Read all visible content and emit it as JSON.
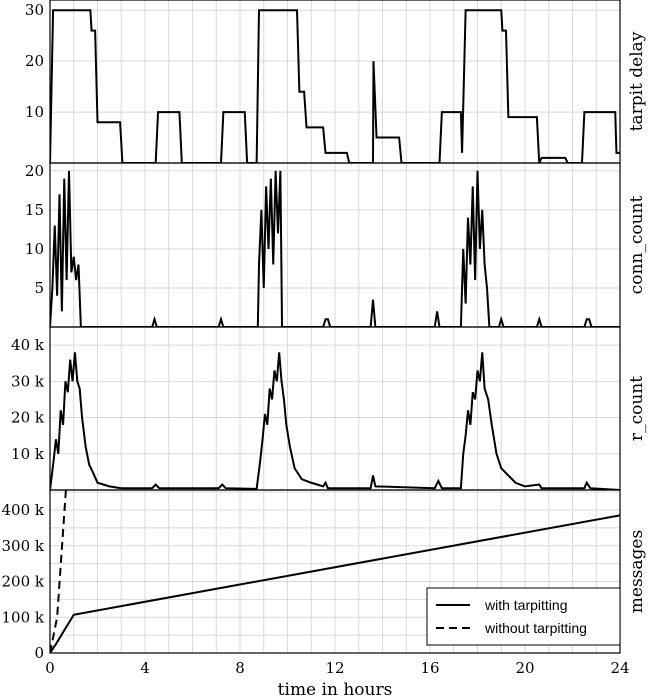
{
  "chart_data": [
    {
      "type": "line",
      "ylabel": "tarpit delay",
      "ylim": [
        0,
        32
      ],
      "yticks": [
        10,
        20,
        30
      ],
      "ytick_labels": [
        "10",
        "20",
        "30"
      ],
      "series": [
        {
          "name": "tarpit delay",
          "points": [
            [
              0,
              0
            ],
            [
              0.13,
              30
            ],
            [
              1.7,
              30
            ],
            [
              1.75,
              26
            ],
            [
              1.9,
              26
            ],
            [
              2.0,
              8
            ],
            [
              2.95,
              8
            ],
            [
              3.05,
              0
            ],
            [
              4.45,
              0
            ],
            [
              4.55,
              10
            ],
            [
              5.45,
              10
            ],
            [
              5.55,
              0
            ],
            [
              7.2,
              0
            ],
            [
              7.3,
              10
            ],
            [
              8.2,
              10
            ],
            [
              8.3,
              0
            ],
            [
              8.7,
              0
            ],
            [
              8.8,
              30
            ],
            [
              10.4,
              30
            ],
            [
              10.5,
              14
            ],
            [
              10.7,
              14
            ],
            [
              10.8,
              7
            ],
            [
              11.5,
              7
            ],
            [
              11.6,
              2
            ],
            [
              12.5,
              2
            ],
            [
              12.6,
              0
            ],
            [
              13.6,
              0
            ],
            [
              13.62,
              20
            ],
            [
              13.75,
              5
            ],
            [
              14.7,
              5
            ],
            [
              14.8,
              0
            ],
            [
              16.4,
              0
            ],
            [
              16.5,
              10
            ],
            [
              17.3,
              10
            ],
            [
              17.35,
              2
            ],
            [
              17.5,
              30
            ],
            [
              19.0,
              30
            ],
            [
              19.05,
              26
            ],
            [
              19.2,
              26
            ],
            [
              19.3,
              9
            ],
            [
              20.5,
              9
            ],
            [
              20.6,
              0
            ],
            [
              20.7,
              1
            ],
            [
              21.7,
              1
            ],
            [
              21.8,
              0
            ],
            [
              22.4,
              0
            ],
            [
              22.5,
              10
            ],
            [
              23.8,
              10
            ],
            [
              23.85,
              2
            ],
            [
              24,
              2
            ]
          ]
        }
      ]
    },
    {
      "type": "line",
      "ylabel": "conn_count",
      "ylim": [
        0,
        21
      ],
      "yticks": [
        5,
        10,
        15,
        20
      ],
      "ytick_labels": [
        "5",
        "10",
        "15",
        "20"
      ],
      "series": [
        {
          "name": "conn_count",
          "points": [
            [
              0,
              0
            ],
            [
              0.1,
              5
            ],
            [
              0.2,
              13
            ],
            [
              0.3,
              4
            ],
            [
              0.4,
              17
            ],
            [
              0.5,
              2
            ],
            [
              0.6,
              19
            ],
            [
              0.7,
              6
            ],
            [
              0.8,
              20
            ],
            [
              0.9,
              7
            ],
            [
              1.0,
              9
            ],
            [
              1.1,
              6
            ],
            [
              1.2,
              8
            ],
            [
              1.3,
              0
            ],
            [
              4.3,
              0
            ],
            [
              4.4,
              1
            ],
            [
              4.5,
              0
            ],
            [
              7.1,
              0
            ],
            [
              7.2,
              1
            ],
            [
              7.3,
              0
            ],
            [
              8.75,
              0
            ],
            [
              8.8,
              8
            ],
            [
              8.9,
              15
            ],
            [
              9.0,
              5
            ],
            [
              9.1,
              18
            ],
            [
              9.2,
              10
            ],
            [
              9.3,
              19
            ],
            [
              9.4,
              8
            ],
            [
              9.5,
              20
            ],
            [
              9.6,
              12
            ],
            [
              9.7,
              20
            ],
            [
              9.77,
              0
            ],
            [
              11.5,
              0
            ],
            [
              11.6,
              1
            ],
            [
              11.7,
              1
            ],
            [
              11.8,
              0
            ],
            [
              13.5,
              0
            ],
            [
              13.6,
              3.5
            ],
            [
              13.7,
              0
            ],
            [
              16.2,
              0
            ],
            [
              16.3,
              2
            ],
            [
              16.4,
              0
            ],
            [
              17.3,
              0
            ],
            [
              17.4,
              10
            ],
            [
              17.5,
              3
            ],
            [
              17.6,
              14
            ],
            [
              17.7,
              8
            ],
            [
              17.8,
              18
            ],
            [
              17.9,
              6
            ],
            [
              18.0,
              20
            ],
            [
              18.1,
              10
            ],
            [
              18.2,
              15
            ],
            [
              18.3,
              8
            ],
            [
              18.4,
              5
            ],
            [
              18.5,
              0
            ],
            [
              18.9,
              0
            ],
            [
              19.0,
              1
            ],
            [
              19.1,
              0
            ],
            [
              20.5,
              0
            ],
            [
              20.6,
              1
            ],
            [
              20.7,
              0
            ],
            [
              22.5,
              0
            ],
            [
              22.6,
              1
            ],
            [
              22.7,
              1
            ],
            [
              22.8,
              0
            ],
            [
              24,
              0
            ]
          ]
        }
      ]
    },
    {
      "type": "line",
      "ylabel": "r_count",
      "ylim": [
        0,
        45
      ],
      "yticks": [
        10,
        20,
        30,
        40
      ],
      "ytick_labels": [
        "10 k",
        "20 k",
        "30 k",
        "40 k"
      ],
      "series": [
        {
          "name": "r_count",
          "points": [
            [
              0,
              0
            ],
            [
              0.15,
              8
            ],
            [
              0.25,
              14
            ],
            [
              0.35,
              10
            ],
            [
              0.45,
              22
            ],
            [
              0.55,
              18
            ],
            [
              0.65,
              30
            ],
            [
              0.75,
              27
            ],
            [
              0.85,
              36
            ],
            [
              0.95,
              30
            ],
            [
              1.05,
              38
            ],
            [
              1.15,
              30
            ],
            [
              1.25,
              28
            ],
            [
              1.35,
              20
            ],
            [
              1.5,
              12
            ],
            [
              1.65,
              7
            ],
            [
              1.8,
              5
            ],
            [
              2.0,
              2
            ],
            [
              2.5,
              1
            ],
            [
              3.0,
              0.5
            ],
            [
              4.3,
              0.5
            ],
            [
              4.45,
              1.5
            ],
            [
              4.6,
              0.5
            ],
            [
              7.1,
              0.5
            ],
            [
              7.25,
              1.5
            ],
            [
              7.4,
              0.5
            ],
            [
              8.7,
              0.3
            ],
            [
              8.85,
              8
            ],
            [
              8.95,
              14
            ],
            [
              9.05,
              21
            ],
            [
              9.15,
              18
            ],
            [
              9.25,
              28
            ],
            [
              9.35,
              25
            ],
            [
              9.45,
              33
            ],
            [
              9.55,
              30
            ],
            [
              9.65,
              38
            ],
            [
              9.75,
              30
            ],
            [
              9.85,
              25
            ],
            [
              9.95,
              18
            ],
            [
              10.1,
              12
            ],
            [
              10.3,
              6
            ],
            [
              10.6,
              3
            ],
            [
              11,
              2
            ],
            [
              11.5,
              1
            ],
            [
              11.6,
              2
            ],
            [
              11.7,
              0.5
            ],
            [
              13.5,
              0.5
            ],
            [
              13.6,
              4
            ],
            [
              13.7,
              1
            ],
            [
              16.2,
              0.5
            ],
            [
              16.35,
              2.5
            ],
            [
              16.5,
              0.5
            ],
            [
              17.3,
              0.5
            ],
            [
              17.4,
              10
            ],
            [
              17.5,
              15
            ],
            [
              17.6,
              22
            ],
            [
              17.7,
              18
            ],
            [
              17.8,
              27
            ],
            [
              17.9,
              25
            ],
            [
              18.0,
              33
            ],
            [
              18.1,
              30
            ],
            [
              18.2,
              38
            ],
            [
              18.3,
              28
            ],
            [
              18.45,
              25
            ],
            [
              18.6,
              18
            ],
            [
              18.8,
              10
            ],
            [
              19.0,
              6
            ],
            [
              19.3,
              4
            ],
            [
              19.6,
              2
            ],
            [
              20,
              1
            ],
            [
              20.6,
              1.5
            ],
            [
              20.7,
              0.5
            ],
            [
              22.5,
              0.5
            ],
            [
              22.6,
              2
            ],
            [
              22.75,
              0.5
            ],
            [
              24,
              0
            ]
          ]
        }
      ]
    },
    {
      "type": "line",
      "ylabel": "messages",
      "xlabel": "time in hours",
      "xlim": [
        0,
        24
      ],
      "xticks": [
        0,
        4,
        8,
        12,
        16,
        20,
        24
      ],
      "xtick_labels": [
        "0",
        "4",
        "8",
        "12",
        "16",
        "20",
        "24"
      ],
      "ylim": [
        0,
        456
      ],
      "yticks": [
        0,
        100,
        200,
        300,
        400
      ],
      "ytick_labels": [
        "0",
        "100 k",
        "200 k",
        "300 k",
        "400 k"
      ],
      "legend": {
        "position": "bottom-right"
      },
      "series": [
        {
          "name": "with tarpitting",
          "style": "solid",
          "points": [
            [
              0,
              0
            ],
            [
              0.25,
              25
            ],
            [
              1.0,
              107
            ],
            [
              24,
              385
            ]
          ]
        },
        {
          "name": "without tarpitting",
          "style": "dashed",
          "points": [
            [
              0,
              0
            ],
            [
              0.3,
              100
            ],
            [
              0.67,
              456
            ]
          ]
        }
      ]
    }
  ]
}
